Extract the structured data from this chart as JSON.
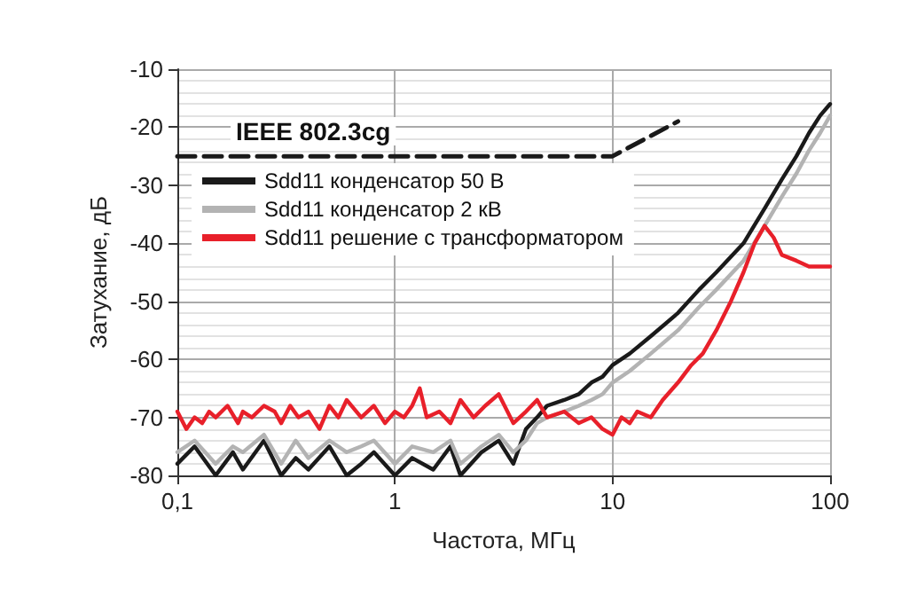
{
  "chart_data": {
    "type": "line",
    "xlabel": "Частота, МГц",
    "ylabel": "Затухание, дБ",
    "log": "x",
    "grid": true,
    "legend": "top left",
    "marker": "none",
    "xlim": [
      0.1,
      100
    ],
    "xticks": [
      {
        "value": 0.1,
        "label": "0,1"
      },
      1,
      10,
      100
    ],
    "ylim": [
      -80,
      -10
    ],
    "yticks": [
      -80,
      -70,
      -60,
      -50,
      -40,
      -30,
      -20,
      -10
    ],
    "annotations": [
      "IEEE 802.3cg"
    ],
    "series": [
      {
        "color": "#1a1a1a",
        "line_style": "dashed",
        "x": [
          0.1,
          10,
          20
        ],
        "values": [
          -25,
          -25,
          -19
        ]
      },
      {
        "name": "Sdd11 конденсатор 50 В",
        "color": "#1a1a1a",
        "x": [
          0.1,
          0.12,
          0.15,
          0.18,
          0.2,
          0.25,
          0.3,
          0.35,
          0.4,
          0.5,
          0.6,
          0.7,
          0.8,
          1,
          1.2,
          1.5,
          1.8,
          2,
          2.5,
          3,
          3.5,
          4,
          4.5,
          5,
          6,
          7,
          8,
          9,
          10,
          12,
          15,
          20,
          25,
          30,
          40,
          50,
          60,
          70,
          80,
          90,
          100
        ],
        "values": [
          -78,
          -75,
          -80,
          -76,
          -79,
          -74,
          -80,
          -77,
          -79,
          -75,
          -80,
          -78,
          -76,
          -80,
          -77,
          -79,
          -75,
          -80,
          -76,
          -74,
          -78,
          -72,
          -70,
          -68,
          -67,
          -66,
          -64,
          -63,
          -61,
          -59,
          -56,
          -52,
          -48,
          -45,
          -40,
          -34,
          -29,
          -25,
          -21,
          -18,
          -16
        ]
      },
      {
        "name": "Sdd11 конденсатор 2 кВ",
        "color": "#b3b3b3",
        "x": [
          0.1,
          0.12,
          0.15,
          0.18,
          0.2,
          0.25,
          0.3,
          0.35,
          0.4,
          0.5,
          0.6,
          0.7,
          0.8,
          1,
          1.2,
          1.5,
          1.8,
          2,
          2.5,
          3,
          3.5,
          4,
          4.5,
          5,
          6,
          7,
          8,
          9,
          10,
          12,
          15,
          20,
          25,
          30,
          40,
          50,
          60,
          70,
          80,
          90,
          100
        ],
        "values": [
          -76,
          -74,
          -78,
          -75,
          -76,
          -73,
          -78,
          -74,
          -77,
          -74,
          -76,
          -75,
          -74,
          -78,
          -75,
          -76,
          -74,
          -78,
          -75,
          -73,
          -76,
          -74,
          -71,
          -70,
          -69,
          -68,
          -67,
          -66,
          -64,
          -62,
          -59,
          -55,
          -51,
          -48,
          -43,
          -37,
          -32,
          -28,
          -24,
          -21,
          -18
        ]
      },
      {
        "name": "Sdd11 решение с трансформатором",
        "color": "#e8202a",
        "x": [
          0.1,
          0.11,
          0.12,
          0.13,
          0.14,
          0.15,
          0.17,
          0.19,
          0.2,
          0.22,
          0.25,
          0.28,
          0.3,
          0.33,
          0.36,
          0.4,
          0.45,
          0.5,
          0.55,
          0.6,
          0.7,
          0.8,
          0.9,
          1,
          1.1,
          1.2,
          1.3,
          1.4,
          1.6,
          1.8,
          2,
          2.3,
          2.6,
          3,
          3.5,
          4,
          4.5,
          5,
          6,
          7,
          8,
          9,
          10,
          11,
          12,
          13,
          15,
          17,
          20,
          23,
          26,
          30,
          35,
          40,
          45,
          50,
          55,
          60,
          70,
          80,
          90,
          100
        ],
        "values": [
          -69,
          -72,
          -70,
          -71,
          -69,
          -70,
          -68,
          -71,
          -69,
          -70,
          -68,
          -69,
          -71,
          -68,
          -70,
          -69,
          -72,
          -68,
          -70,
          -67,
          -70,
          -68,
          -71,
          -69,
          -70,
          -68,
          -65,
          -70,
          -69,
          -71,
          -67,
          -70,
          -68,
          -66,
          -71,
          -69,
          -67,
          -70,
          -69,
          -71,
          -70,
          -72,
          -73,
          -70,
          -71,
          -69,
          -70,
          -67,
          -64,
          -61,
          -59,
          -55,
          -50,
          -45,
          -40,
          -37,
          -39,
          -42,
          -43,
          -44,
          -44,
          -44
        ]
      }
    ]
  }
}
